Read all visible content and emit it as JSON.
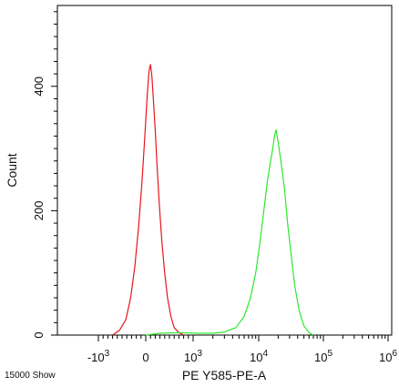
{
  "chart_data": {
    "type": "line",
    "title": "",
    "xlabel": "PE Y585-PE-A",
    "ylabel": "Count",
    "footer_note": "15000 Show",
    "x_scale": "biexponential",
    "xlim": [
      -2000,
      1000000
    ],
    "ylim": [
      0,
      530
    ],
    "grid": false,
    "x_ticks": [
      {
        "value": -1000,
        "label": "-10",
        "exp": "3"
      },
      {
        "value": 0,
        "label": "0",
        "exp": ""
      },
      {
        "value": 1000,
        "label": "10",
        "exp": "3"
      },
      {
        "value": 10000,
        "label": "10",
        "exp": "4"
      },
      {
        "value": 100000,
        "label": "10",
        "exp": "5"
      },
      {
        "value": 1000000,
        "label": "10",
        "exp": "6"
      }
    ],
    "y_ticks": [
      {
        "value": 0,
        "label": "0"
      },
      {
        "value": 200,
        "label": "200"
      },
      {
        "value": 400,
        "label": "400"
      }
    ],
    "series": [
      {
        "color": "#e8141c",
        "points": [
          [
            -700,
            0
          ],
          [
            -550,
            8
          ],
          [
            -420,
            25
          ],
          [
            -320,
            60
          ],
          [
            -230,
            110
          ],
          [
            -150,
            175
          ],
          [
            -80,
            245
          ],
          [
            -20,
            320
          ],
          [
            30,
            385
          ],
          [
            70,
            425
          ],
          [
            100,
            435
          ],
          [
            130,
            415
          ],
          [
            160,
            380
          ],
          [
            200,
            330
          ],
          [
            240,
            270
          ],
          [
            290,
            205
          ],
          [
            340,
            150
          ],
          [
            400,
            100
          ],
          [
            460,
            60
          ],
          [
            530,
            30
          ],
          [
            600,
            12
          ],
          [
            700,
            4
          ],
          [
            800,
            0
          ]
        ]
      },
      {
        "color": "#2ee82e",
        "points": [
          [
            0,
            0
          ],
          [
            300,
            3
          ],
          [
            700,
            4
          ],
          [
            1200,
            3
          ],
          [
            2000,
            3
          ],
          [
            3000,
            5
          ],
          [
            4500,
            12
          ],
          [
            6000,
            30
          ],
          [
            7500,
            60
          ],
          [
            9000,
            100
          ],
          [
            10500,
            150
          ],
          [
            12000,
            200
          ],
          [
            13500,
            245
          ],
          [
            15000,
            275
          ],
          [
            16500,
            300
          ],
          [
            17500,
            320
          ],
          [
            18500,
            330
          ],
          [
            20000,
            310
          ],
          [
            22000,
            280
          ],
          [
            25000,
            235
          ],
          [
            28000,
            180
          ],
          [
            32000,
            125
          ],
          [
            36000,
            80
          ],
          [
            42000,
            40
          ],
          [
            50000,
            15
          ],
          [
            60000,
            4
          ],
          [
            70000,
            0
          ]
        ]
      }
    ]
  }
}
